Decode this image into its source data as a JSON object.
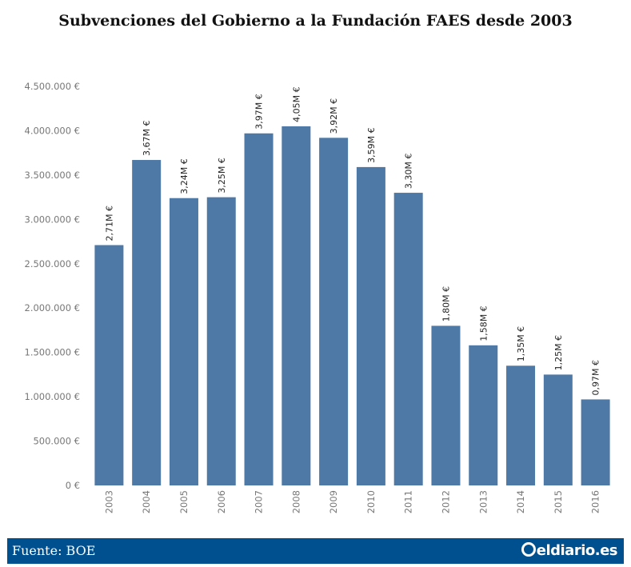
{
  "title": "Subvenciones del Gobierno a la Fundación FAES desde 2003",
  "footer": {
    "source": "Fuente: BOE",
    "brand": "eldiario.es"
  },
  "colors": {
    "bar": "#4e78a6",
    "footer_bg": "#00508f"
  },
  "chart_data": {
    "type": "bar",
    "categories": [
      "2003",
      "2004",
      "2005",
      "2006",
      "2007",
      "2008",
      "2009",
      "2010",
      "2011",
      "2012",
      "2013",
      "2014",
      "2015",
      "2016"
    ],
    "values": [
      2710000,
      3670000,
      3240000,
      3250000,
      3970000,
      4050000,
      3920000,
      3590000,
      3300000,
      1800000,
      1580000,
      1350000,
      1250000,
      970000
    ],
    "data_labels": [
      "2,71M €",
      "3,67M €",
      "3,24M €",
      "3,25M €",
      "3,97M €",
      "4,05M €",
      "3,92M €",
      "3,59M €",
      "3,30M €",
      "1,80M €",
      "1,58M €",
      "1,35M €",
      "1,25M €",
      "0,97M €"
    ],
    "ylim": [
      0,
      4500000
    ],
    "y_ticks": [
      0,
      500000,
      1000000,
      1500000,
      2000000,
      2500000,
      3000000,
      3500000,
      4000000,
      4500000
    ],
    "y_tick_labels": [
      "0 €",
      "500.000 €",
      "1.000.000 €",
      "1.500.000 €",
      "2.000.000 €",
      "2.500.000 €",
      "3.000.000 €",
      "3.500.000 €",
      "4.000.000 €",
      "4.500.000 €"
    ],
    "xlabel": "",
    "ylabel": "",
    "grid": false
  }
}
